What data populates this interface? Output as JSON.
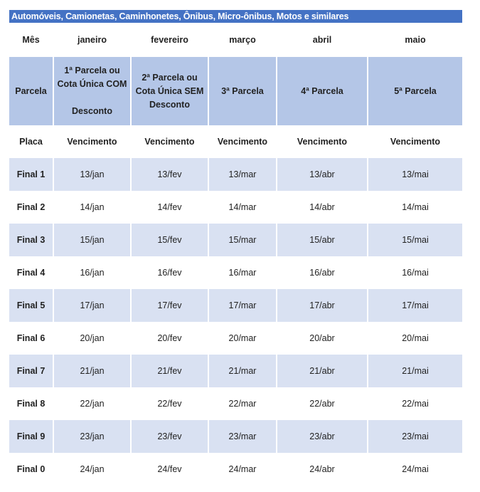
{
  "title": "Automóveis, Camionetas, Caminhonetes, Ônibus, Micro-ônibus, Motos e similares",
  "colors": {
    "title_bg": "#4472C4",
    "header_bg": "#B4C6E7",
    "alt_row_bg": "#D9E1F2"
  },
  "months": [
    "Mês",
    "janeiro",
    "fevereiro",
    "março",
    "abril",
    "maio"
  ],
  "parcelas": [
    "Parcela",
    "1ª Parcela ou Cota Única COM\n\nDesconto",
    "2ª Parcela ou Cota Única SEM Desconto",
    "3ª Parcela",
    "4ª Parcela",
    "5ª Parcela"
  ],
  "vencimento": [
    "Placa",
    "Vencimento",
    "Vencimento",
    "Vencimento",
    "Vencimento",
    "Vencimento"
  ],
  "rows": [
    [
      "Final 1",
      "13/jan",
      "13/fev",
      "13/mar",
      "13/abr",
      "13/mai"
    ],
    [
      "Final 2",
      "14/jan",
      "14/fev",
      "14/mar",
      "14/abr",
      "14/mai"
    ],
    [
      "Final 3",
      "15/jan",
      "15/fev",
      "15/mar",
      "15/abr",
      "15/mai"
    ],
    [
      "Final 4",
      "16/jan",
      "16/fev",
      "16/mar",
      "16/abr",
      "16/mai"
    ],
    [
      "Final 5",
      "17/jan",
      "17/fev",
      "17/mar",
      "17/abr",
      "17/mai"
    ],
    [
      "Final 6",
      "20/jan",
      "20/fev",
      "20/mar",
      "20/abr",
      "20/mai"
    ],
    [
      "Final 7",
      "21/jan",
      "21/fev",
      "21/mar",
      "21/abr",
      "21/mai"
    ],
    [
      "Final 8",
      "22/jan",
      "22/fev",
      "22/mar",
      "22/abr",
      "22/mai"
    ],
    [
      "Final 9",
      "23/jan",
      "23/fev",
      "23/mar",
      "23/abr",
      "23/mai"
    ],
    [
      "Final 0",
      "24/jan",
      "24/fev",
      "24/mar",
      "24/abr",
      "24/mai"
    ]
  ]
}
